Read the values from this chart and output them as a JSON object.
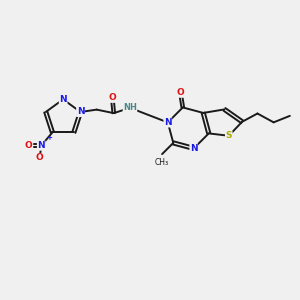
{
  "background_color": "#f0f0f0",
  "bond_color": "#1a1a1a",
  "n_color": "#1a1ae6",
  "o_color": "#dd1111",
  "s_color": "#aaaa00",
  "h_color": "#4a8888",
  "figsize": [
    3.0,
    3.0
  ],
  "dpi": 100,
  "xlim": [
    0,
    10
  ],
  "ylim": [
    0,
    10
  ]
}
